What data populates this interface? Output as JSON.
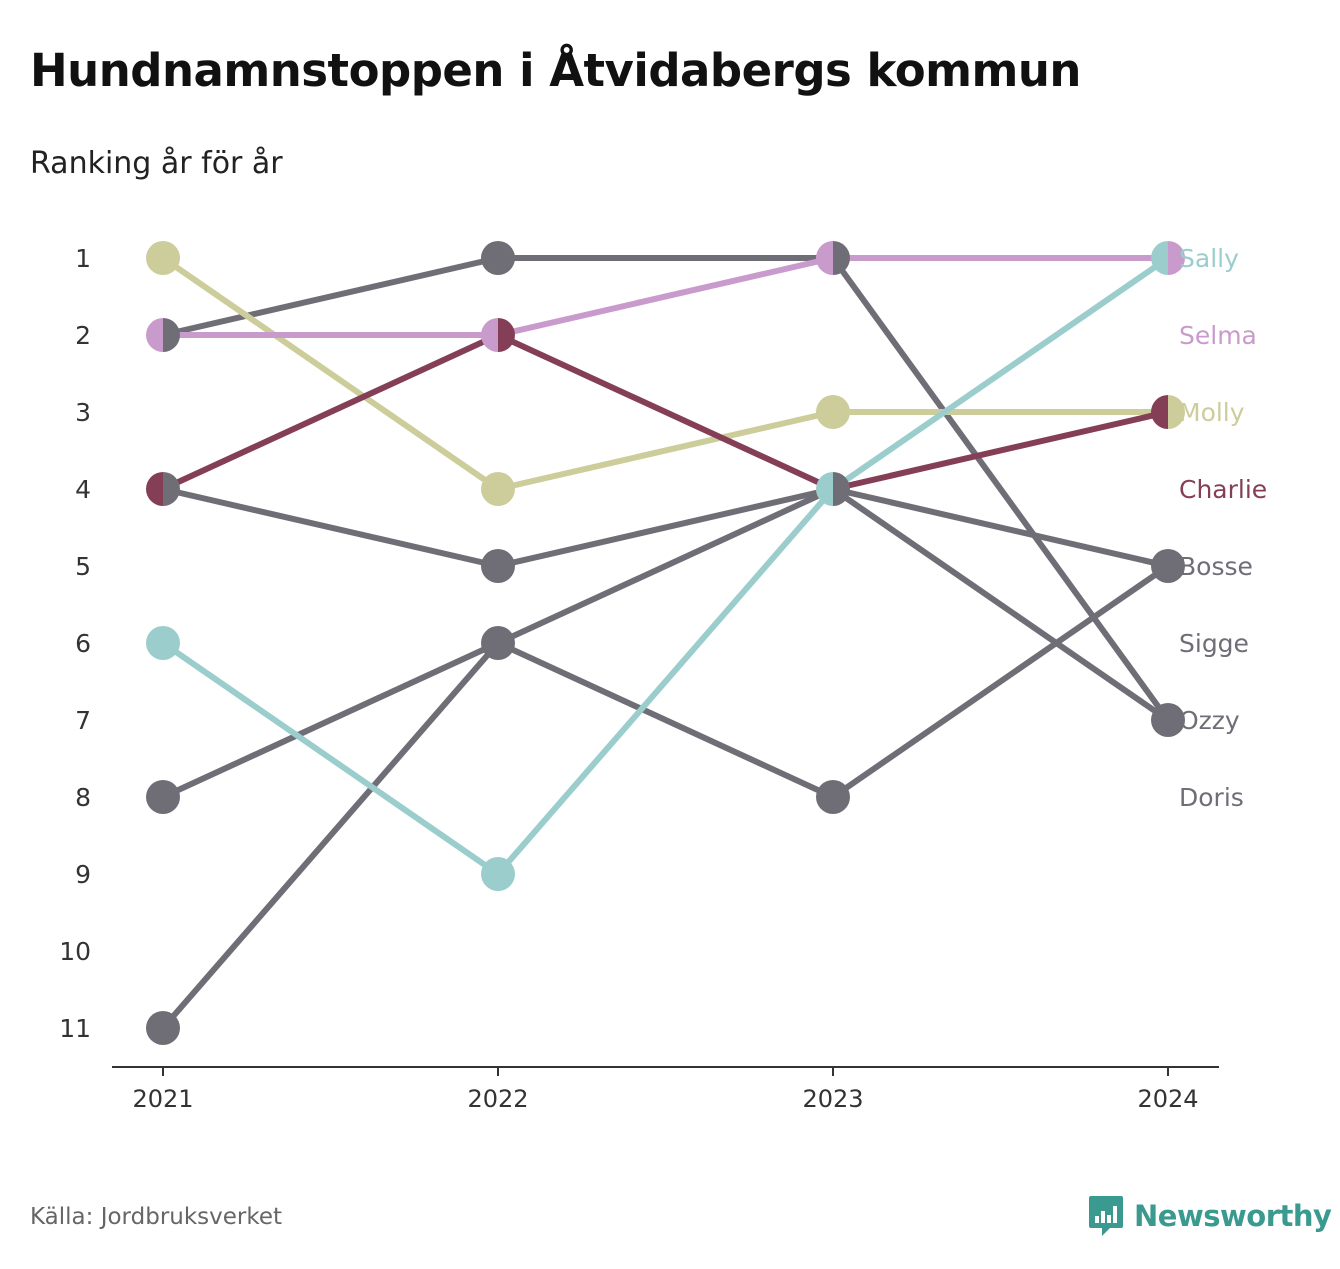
{
  "title": "Hundnamnstoppen i Åtvidabergs kommun",
  "subtitle": "Ranking år för år",
  "source": "Källa: Jordbruksverket",
  "brand": "Newsworthy",
  "colors": {
    "brand": "#3a9a90",
    "axis": "#333333",
    "text": "#333333"
  },
  "chart_data": {
    "type": "line",
    "x": [
      "2021",
      "2022",
      "2023",
      "2024"
    ],
    "y_ticks": [
      1,
      2,
      3,
      4,
      5,
      6,
      7,
      8,
      9,
      10,
      11
    ],
    "ylim": [
      1,
      11
    ],
    "y_inverted": true,
    "grid": false,
    "legend": "right end labels",
    "series": [
      {
        "name": "Doris",
        "color": "#6f6e76",
        "ranks": [
          11,
          6,
          4,
          7
        ]
      },
      {
        "name": "Ozzy",
        "color": "#6f6e76",
        "ranks": [
          2,
          1,
          1,
          7
        ]
      },
      {
        "name": "Sigge",
        "color": "#6f6e76",
        "ranks": [
          8,
          6,
          8,
          5
        ]
      },
      {
        "name": "Bosse",
        "color": "#6f6e76",
        "ranks": [
          4,
          5,
          4,
          5
        ]
      },
      {
        "name": "Molly",
        "color": "#cdcd9b",
        "ranks": [
          1,
          4,
          3,
          3
        ]
      },
      {
        "name": "Charlie",
        "color": "#843f57",
        "ranks": [
          4,
          2,
          4,
          3
        ]
      },
      {
        "name": "Selma",
        "color": "#c99bcd",
        "ranks": [
          2,
          2,
          1,
          1
        ]
      },
      {
        "name": "Sally",
        "color": "#9bcdcd",
        "ranks": [
          6,
          9,
          4,
          1
        ]
      }
    ],
    "end_labels": [
      {
        "name": "Sally",
        "rank": 1,
        "color": "#9bcdcd"
      },
      {
        "name": "Selma",
        "rank": 2,
        "color": "#c99bcd"
      },
      {
        "name": "Molly",
        "rank": 3,
        "color": "#cdcd9b"
      },
      {
        "name": "Charlie",
        "rank": 4,
        "color": "#843f57"
      },
      {
        "name": "Bosse",
        "rank": 5,
        "color": "#6f6e76"
      },
      {
        "name": "Sigge",
        "rank": 6,
        "color": "#6f6e76"
      },
      {
        "name": "Ozzy",
        "rank": 7,
        "color": "#6f6e76"
      },
      {
        "name": "Doris",
        "rank": 8,
        "color": "#6f6e76"
      }
    ]
  }
}
